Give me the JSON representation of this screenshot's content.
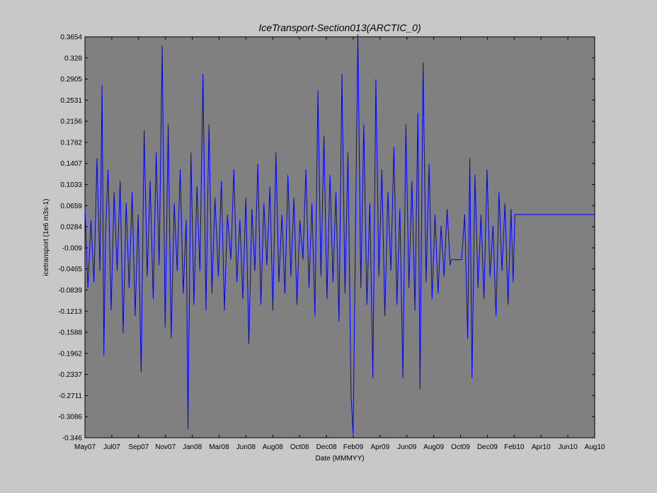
{
  "chart_data": {
    "type": "line",
    "title": "IceTransport-Section013(ARCTIC_0)",
    "xlabel": "Date (MMMYY)",
    "ylabel": "icetransport (1e6 m3s-1)",
    "ylim": [
      -0.346,
      0.3654
    ],
    "xlim": [
      "2007-05-01",
      "2010-08-01"
    ],
    "x_ticks": [
      "May07",
      "Jul07",
      "Sep07",
      "Nov07",
      "Jan08",
      "Mar08",
      "Jun08",
      "Aug08",
      "Oct08",
      "Dec08",
      "Feb09",
      "Apr09",
      "Jun09",
      "Aug09",
      "Oct09",
      "Dec09",
      "Feb10",
      "Apr10",
      "Jun10",
      "Aug10"
    ],
    "y_ticks": [
      "0.3654",
      "0.328",
      "0.2905",
      "0.2531",
      "0.2156",
      "0.1782",
      "0.1407",
      "0.1033",
      "0.0659",
      "0.0284",
      "-0.009",
      "-0.0465",
      "-0.0839",
      "-0.1213",
      "-0.1588",
      "-0.1962",
      "-0.2337",
      "-0.2711",
      "-0.3086",
      "-0.346"
    ],
    "grid": false,
    "background_color": "#808080",
    "series": [
      {
        "color": "#0000ff",
        "points": [
          [
            "2007-05-01",
            0.06
          ],
          [
            "2007-05-08",
            -0.08
          ],
          [
            "2007-05-15",
            0.04
          ],
          [
            "2007-05-22",
            -0.07
          ],
          [
            "2007-05-29",
            0.15
          ],
          [
            "2007-06-05",
            -0.05
          ],
          [
            "2007-06-10",
            0.28
          ],
          [
            "2007-06-14",
            -0.2
          ],
          [
            "2007-06-18",
            0.02
          ],
          [
            "2007-06-24",
            0.13
          ],
          [
            "2007-07-01",
            -0.12
          ],
          [
            "2007-07-08",
            0.09
          ],
          [
            "2007-07-15",
            -0.05
          ],
          [
            "2007-07-22",
            0.11
          ],
          [
            "2007-07-29",
            -0.16
          ],
          [
            "2007-08-05",
            0.07
          ],
          [
            "2007-08-12",
            -0.08
          ],
          [
            "2007-08-19",
            0.09
          ],
          [
            "2007-08-26",
            -0.13
          ],
          [
            "2007-09-02",
            0.05
          ],
          [
            "2007-09-09",
            -0.23
          ],
          [
            "2007-09-16",
            0.2
          ],
          [
            "2007-09-23",
            -0.06
          ],
          [
            "2007-09-30",
            0.11
          ],
          [
            "2007-10-07",
            -0.1
          ],
          [
            "2007-10-14",
            0.16
          ],
          [
            "2007-10-21",
            -0.04
          ],
          [
            "2007-10-28",
            0.35
          ],
          [
            "2007-11-04",
            -0.15
          ],
          [
            "2007-11-11",
            0.21
          ],
          [
            "2007-11-18",
            -0.17
          ],
          [
            "2007-11-25",
            0.07
          ],
          [
            "2007-12-02",
            -0.05
          ],
          [
            "2007-12-09",
            0.13
          ],
          [
            "2007-12-16",
            -0.09
          ],
          [
            "2007-12-23",
            0.04
          ],
          [
            "2007-12-27",
            -0.33
          ],
          [
            "2008-01-03",
            0.16
          ],
          [
            "2008-01-10",
            -0.11
          ],
          [
            "2008-01-17",
            0.1
          ],
          [
            "2008-01-24",
            -0.05
          ],
          [
            "2008-01-31",
            0.3
          ],
          [
            "2008-02-07",
            -0.12
          ],
          [
            "2008-02-14",
            0.21
          ],
          [
            "2008-02-21",
            -0.09
          ],
          [
            "2008-02-28",
            0.08
          ],
          [
            "2008-03-07",
            -0.06
          ],
          [
            "2008-03-14",
            0.11
          ],
          [
            "2008-03-21",
            -0.12
          ],
          [
            "2008-03-28",
            0.05
          ],
          [
            "2008-04-05",
            -0.03
          ],
          [
            "2008-04-12",
            0.13
          ],
          [
            "2008-04-19",
            -0.07
          ],
          [
            "2008-04-26",
            0.04
          ],
          [
            "2008-05-03",
            -0.1
          ],
          [
            "2008-05-10",
            0.08
          ],
          [
            "2008-05-17",
            -0.18
          ],
          [
            "2008-05-24",
            0.06
          ],
          [
            "2008-05-31",
            -0.05
          ],
          [
            "2008-06-07",
            0.14
          ],
          [
            "2008-06-14",
            -0.11
          ],
          [
            "2008-06-21",
            0.07
          ],
          [
            "2008-06-28",
            -0.04
          ],
          [
            "2008-07-05",
            0.1
          ],
          [
            "2008-07-12",
            -0.12
          ],
          [
            "2008-07-19",
            0.16
          ],
          [
            "2008-07-26",
            -0.07
          ],
          [
            "2008-08-02",
            0.05
          ],
          [
            "2008-08-09",
            -0.09
          ],
          [
            "2008-08-16",
            0.12
          ],
          [
            "2008-08-23",
            -0.06
          ],
          [
            "2008-08-30",
            0.08
          ],
          [
            "2008-09-06",
            -0.11
          ],
          [
            "2008-09-13",
            0.04
          ],
          [
            "2008-09-20",
            -0.03
          ],
          [
            "2008-09-27",
            0.13
          ],
          [
            "2008-10-04",
            -0.08
          ],
          [
            "2008-10-11",
            0.07
          ],
          [
            "2008-10-18",
            -0.13
          ],
          [
            "2008-10-25",
            0.27
          ],
          [
            "2008-11-01",
            -0.06
          ],
          [
            "2008-11-08",
            0.19
          ],
          [
            "2008-11-15",
            -0.1
          ],
          [
            "2008-11-22",
            0.12
          ],
          [
            "2008-11-29",
            -0.07
          ],
          [
            "2008-12-06",
            0.09
          ],
          [
            "2008-12-13",
            -0.14
          ],
          [
            "2008-12-20",
            0.3
          ],
          [
            "2008-12-27",
            -0.09
          ],
          [
            "2009-01-03",
            0.16
          ],
          [
            "2009-01-10",
            -0.27
          ],
          [
            "2009-01-15",
            -0.34
          ],
          [
            "2009-01-22",
            0.11
          ],
          [
            "2009-01-26",
            0.37
          ],
          [
            "2009-02-02",
            -0.08
          ],
          [
            "2009-02-09",
            0.21
          ],
          [
            "2009-02-16",
            -0.11
          ],
          [
            "2009-02-23",
            0.07
          ],
          [
            "2009-03-02",
            -0.24
          ],
          [
            "2009-03-09",
            0.29
          ],
          [
            "2009-03-16",
            -0.06
          ],
          [
            "2009-03-23",
            0.13
          ],
          [
            "2009-03-30",
            -0.13
          ],
          [
            "2009-04-06",
            0.09
          ],
          [
            "2009-04-13",
            -0.05
          ],
          [
            "2009-04-20",
            0.17
          ],
          [
            "2009-04-27",
            -0.11
          ],
          [
            "2009-05-04",
            0.06
          ],
          [
            "2009-05-11",
            -0.24
          ],
          [
            "2009-05-18",
            0.21
          ],
          [
            "2009-05-25",
            -0.08
          ],
          [
            "2009-06-01",
            0.11
          ],
          [
            "2009-06-08",
            -0.12
          ],
          [
            "2009-06-15",
            0.23
          ],
          [
            "2009-06-20",
            -0.26
          ],
          [
            "2009-06-27",
            0.32
          ],
          [
            "2009-07-04",
            -0.07
          ],
          [
            "2009-07-11",
            0.14
          ],
          [
            "2009-07-18",
            -0.1
          ],
          [
            "2009-07-25",
            0.05
          ],
          [
            "2009-08-01",
            -0.09
          ],
          [
            "2009-08-08",
            0.03
          ],
          [
            "2009-08-15",
            -0.06
          ],
          [
            "2009-08-22",
            0.06
          ],
          [
            "2009-08-29",
            -0.04
          ],
          [
            "2009-09-01",
            -0.03
          ],
          [
            "2009-09-25",
            -0.03
          ],
          [
            "2009-10-02",
            0.05
          ],
          [
            "2009-10-09",
            -0.17
          ],
          [
            "2009-10-14",
            0.15
          ],
          [
            "2009-10-19",
            -0.24
          ],
          [
            "2009-10-26",
            0.12
          ],
          [
            "2009-11-02",
            -0.08
          ],
          [
            "2009-11-09",
            0.05
          ],
          [
            "2009-11-16",
            -0.1
          ],
          [
            "2009-11-23",
            0.13
          ],
          [
            "2009-11-30",
            -0.06
          ],
          [
            "2009-12-07",
            0.03
          ],
          [
            "2009-12-14",
            -0.13
          ],
          [
            "2009-12-21",
            0.09
          ],
          [
            "2009-12-28",
            -0.05
          ],
          [
            "2010-01-04",
            0.07
          ],
          [
            "2010-01-11",
            -0.11
          ],
          [
            "2010-01-18",
            0.06
          ],
          [
            "2010-01-23",
            -0.07
          ],
          [
            "2010-01-27",
            0.05
          ],
          [
            "2010-01-28",
            0.05
          ],
          [
            "2010-08-01",
            0.05
          ]
        ]
      }
    ]
  }
}
